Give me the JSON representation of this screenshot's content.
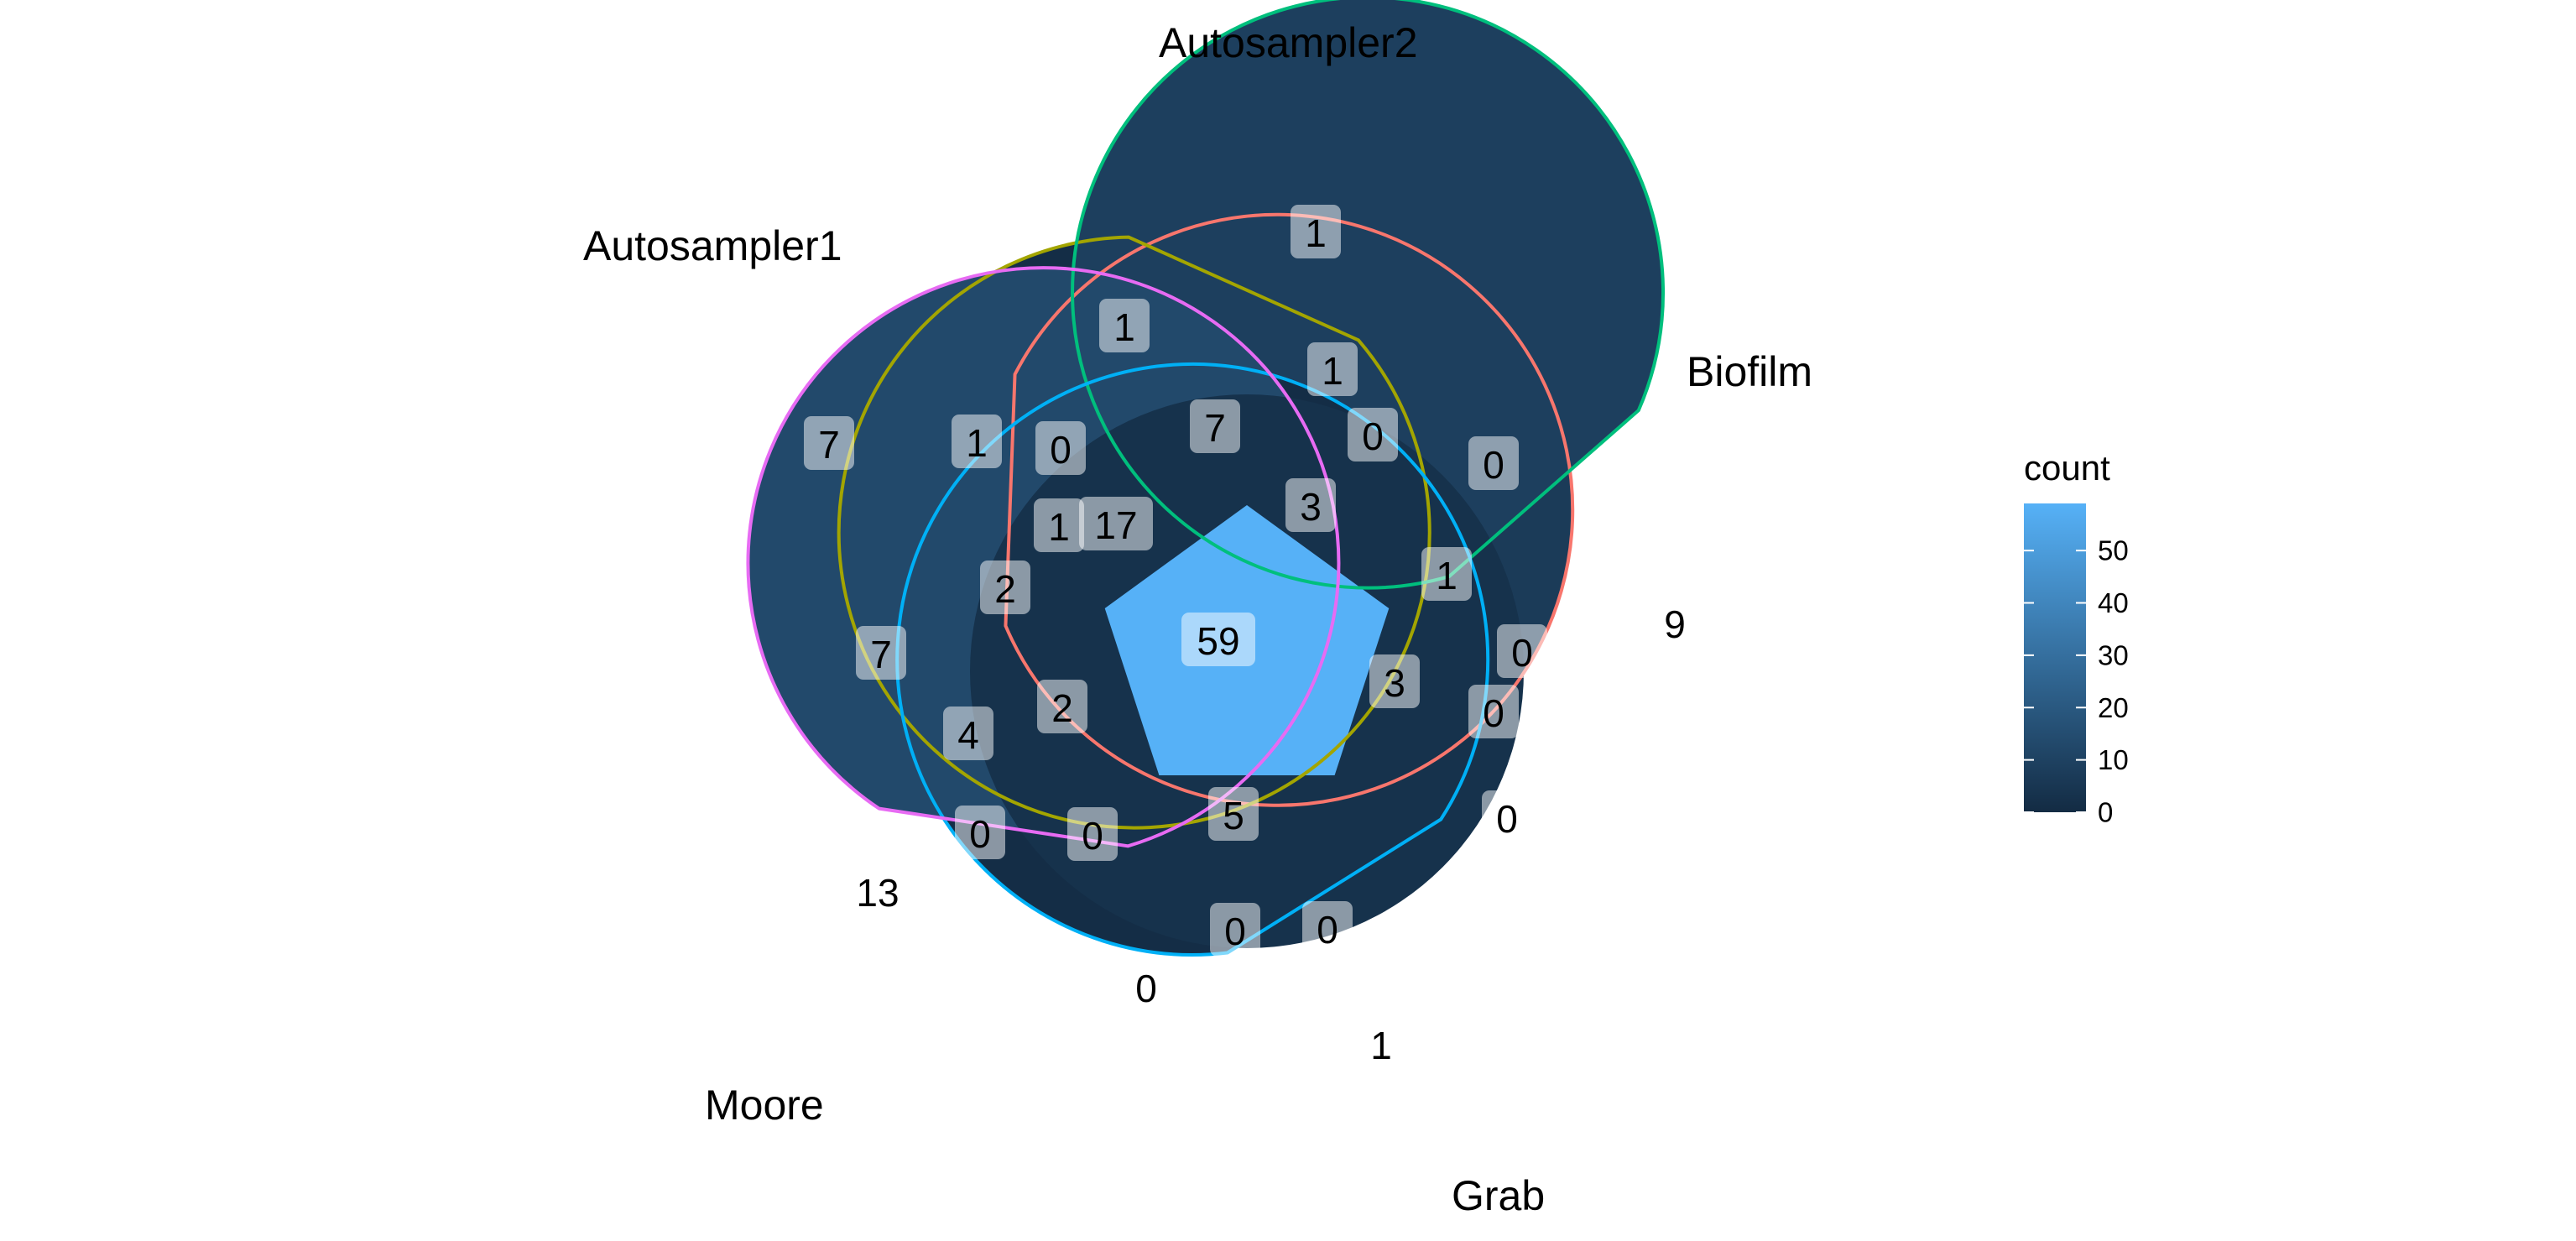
{
  "sets": [
    {
      "name": "Autosampler1",
      "color": "#F8766D"
    },
    {
      "name": "Autosampler2",
      "color": "#A3A500"
    },
    {
      "name": "Biofilm",
      "color": "#00BF7D"
    },
    {
      "name": "Grab",
      "color": "#00B0F6"
    },
    {
      "name": "Moore",
      "color": "#E76BF3"
    }
  ],
  "legend": {
    "title": "count",
    "ticks": [
      "0",
      "10",
      "20",
      "30",
      "40",
      "50"
    ],
    "tick_values": [
      0,
      10,
      20,
      30,
      40,
      50
    ],
    "range": [
      0,
      59
    ],
    "color_low": "#132B43",
    "color_high": "#56B1F7"
  },
  "regions": [
    {
      "sets": "Autosampler1",
      "count": 7
    },
    {
      "sets": "Autosampler2",
      "count": 1
    },
    {
      "sets": "Biofilm",
      "count": 9
    },
    {
      "sets": "Grab",
      "count": 1
    },
    {
      "sets": "Moore",
      "count": 13
    },
    {
      "sets": "Autosampler1-Autosampler2",
      "count": 1
    },
    {
      "sets": "Autosampler2-Moore",
      "count": 1
    },
    {
      "sets": "Autosampler2-Biofilm",
      "count": 0
    },
    {
      "sets": "Biofilm-Autosampler1",
      "count": 1
    },
    {
      "sets": "Biofilm-Grab",
      "count": 0
    },
    {
      "sets": "Grab-Autosampler2",
      "count": 0
    },
    {
      "sets": "Grab-Moore",
      "count": 0
    },
    {
      "sets": "Moore-Biofilm",
      "count": 0
    },
    {
      "sets": "Moore-Autosampler1",
      "count": 7
    },
    {
      "sets": "Autosampler1-Grab",
      "count": 1
    },
    {
      "sets": "Autosampler1-Autosampler2-Grab",
      "count": 0
    },
    {
      "sets": "Autosampler2-Moore-Autosampler1",
      "count": 7
    },
    {
      "sets": "Autosampler2-Biofilm-Moore",
      "count": 0
    },
    {
      "sets": "Biofilm-Autosampler1-Autosampler2",
      "count": 3
    },
    {
      "sets": "Biofilm-Grab-Autosampler1",
      "count": 0
    },
    {
      "sets": "Grab-Biofilm-Autosampler2",
      "count": 0
    },
    {
      "sets": "Grab-Moore-Biofilm",
      "count": 0
    },
    {
      "sets": "Moore-Grab-Autosampler2",
      "count": 0
    },
    {
      "sets": "Moore-Autosampler1-Grab",
      "count": 4
    },
    {
      "sets": "Autosampler1-Biofilm-Moore",
      "count": 2
    },
    {
      "sets": "Four-set (no Moore)",
      "count": 1
    },
    {
      "sets": "Four-set (no Autosampler1)",
      "count": 5
    },
    {
      "sets": "Four-set (no Biofilm)",
      "count": 2
    },
    {
      "sets": "Four-set (no Autosampler2)",
      "count": 17
    },
    {
      "sets": "Four-set (no Grab)",
      "count": 3
    },
    {
      "sets": "All five",
      "count": 59
    }
  ]
}
